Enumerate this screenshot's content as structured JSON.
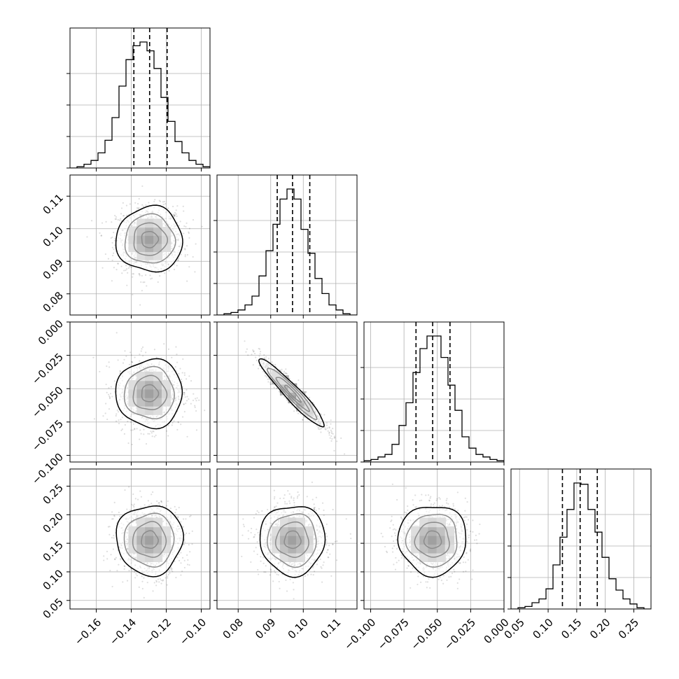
{
  "chart_data": {
    "type": "corner",
    "parameters": [
      {
        "ticks": [
          "−0.16",
          "−0.14",
          "−0.12",
          "−0.10"
        ],
        "tick_values": [
          -0.16,
          -0.14,
          -0.12,
          -0.1
        ],
        "range": [
          -0.175,
          -0.095
        ]
      },
      {
        "ticks": [
          "0.08",
          "0.09",
          "0.10",
          "0.11"
        ],
        "tick_values": [
          0.08,
          0.09,
          0.1,
          0.11
        ],
        "range": [
          0.0735,
          0.1165
        ]
      },
      {
        "ticks": [
          "−0.100",
          "−0.075",
          "−0.050",
          "−0.025",
          "0.000"
        ],
        "tick_values": [
          -0.1,
          -0.075,
          -0.05,
          -0.025,
          0.0
        ],
        "range": [
          -0.105,
          0.0
        ]
      },
      {
        "ticks": [
          "0.05",
          "0.10",
          "0.15",
          "0.20",
          "0.25"
        ],
        "tick_values": [
          0.05,
          0.1,
          0.15,
          0.2,
          0.25
        ],
        "range": [
          0.035,
          0.28
        ]
      }
    ],
    "quantiles": [
      [
        -0.1385,
        -0.1295,
        -0.1195
      ],
      [
        0.092,
        0.0967,
        0.102
      ],
      [
        -0.066,
        -0.0535,
        -0.0405
      ],
      [
        0.125,
        0.156,
        0.186
      ]
    ],
    "histograms": [
      [
        0,
        0.01,
        0.03,
        0.06,
        0.12,
        0.22,
        0.4,
        0.65,
        0.86,
        0.97,
        1.0,
        0.93,
        0.79,
        0.56,
        0.37,
        0.21,
        0.12,
        0.06,
        0.03,
        0.01
      ],
      [
        0,
        0.01,
        0.02,
        0.04,
        0.08,
        0.15,
        0.31,
        0.51,
        0.72,
        0.92,
        1.0,
        0.92,
        0.68,
        0.49,
        0.29,
        0.17,
        0.08,
        0.04,
        0.01,
        0
      ],
      [
        0.01,
        0.02,
        0.04,
        0.06,
        0.14,
        0.29,
        0.47,
        0.71,
        0.9,
        1.0,
        1.0,
        0.83,
        0.61,
        0.41,
        0.2,
        0.11,
        0.06,
        0.04,
        0.02,
        0.01
      ],
      [
        0,
        0.01,
        0.02,
        0.05,
        0.08,
        0.16,
        0.35,
        0.57,
        0.79,
        1.0,
        0.99,
        0.79,
        0.61,
        0.41,
        0.24,
        0.15,
        0.08,
        0.04,
        0.01,
        0.0
      ]
    ],
    "correlations": {
      "1-0": 0.0,
      "2-0": 0.0,
      "2-1": -0.95,
      "3-0": 0.0,
      "3-1": 0.0,
      "3-2": 0.0
    },
    "contour_levels": [
      "0.5σ",
      "1σ",
      "1.5σ",
      "2σ"
    ]
  }
}
